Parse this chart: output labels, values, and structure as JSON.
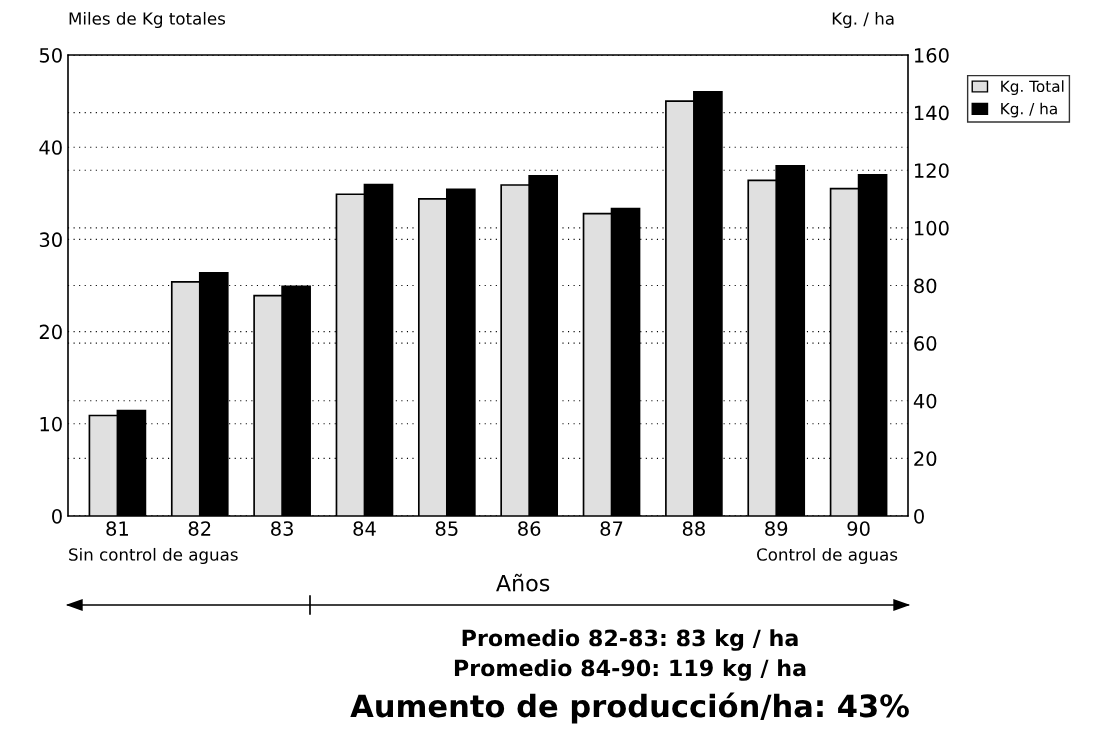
{
  "chart_data": {
    "type": "bar",
    "ylabel": "Miles de Kg totales",
    "y2label": "Kg. / ha",
    "xlabel": "Años",
    "categories": [
      "81",
      "82",
      "83",
      "84",
      "85",
      "86",
      "87",
      "88",
      "89",
      "90"
    ],
    "series": [
      {
        "name": "Kg. Total",
        "color": "#e0e0e0",
        "values": [
          10.9,
          25.4,
          23.9,
          34.9,
          34.4,
          35.9,
          32.8,
          45.0,
          36.4,
          35.5
        ]
      },
      {
        "name": "Kg. / ha",
        "color": "#000000",
        "axis": "y2",
        "values": [
          36.6,
          84.4,
          79.7,
          115.0,
          113.4,
          118.1,
          106.7,
          147.2,
          121.5,
          118.4
        ]
      }
    ],
    "ylim": [
      0,
      50
    ],
    "yticks": [
      0,
      10,
      20,
      30,
      40,
      50
    ],
    "y2lim": [
      0,
      160
    ],
    "y2ticks": [
      0,
      20,
      40,
      60,
      80,
      100,
      120,
      140,
      160
    ],
    "grid": true,
    "legend": "top right",
    "annotations": [
      "Sin control de aguas",
      "Control de aguas",
      "Promedio 82-83: 83 kg / ha",
      "Promedio 84-90: 119 kg / ha",
      "Aumento de producción/ha: 43%"
    ]
  }
}
